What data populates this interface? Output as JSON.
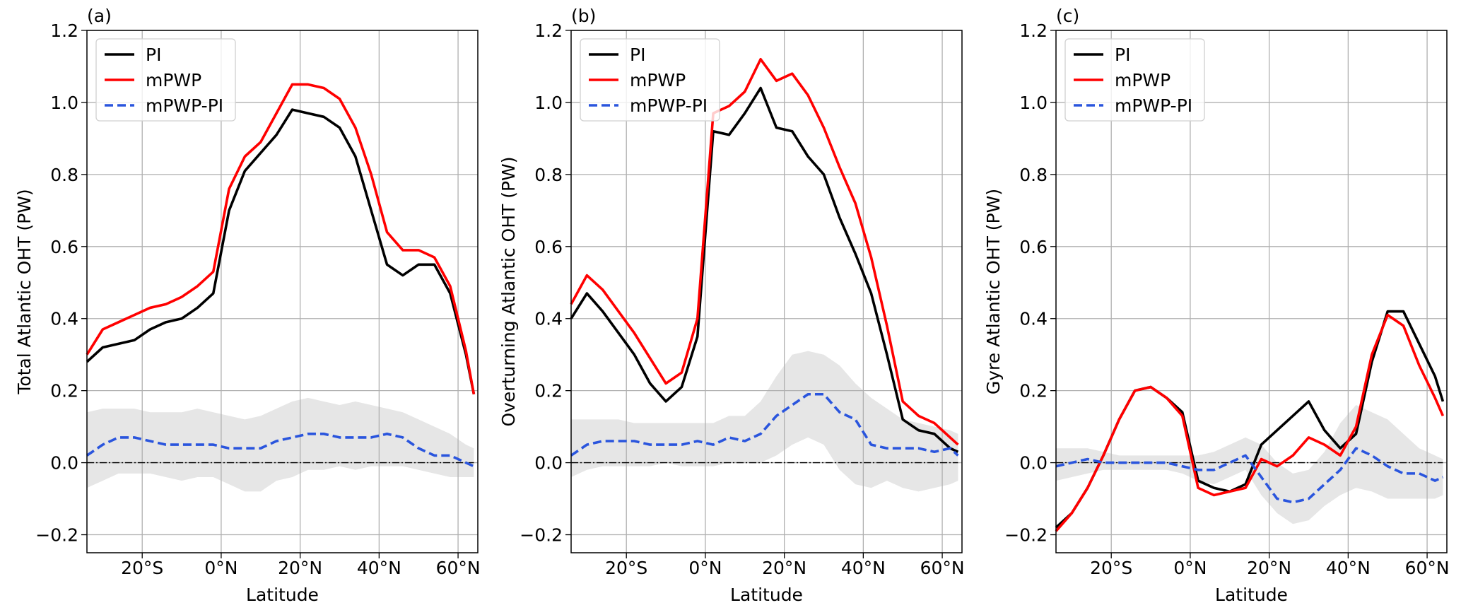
{
  "chart_data": [
    {
      "type": "line",
      "title": "(a)",
      "x_label": "Latitude",
      "y_label": "Total Atlantic OHT (PW)",
      "xlim": [
        -34,
        65
      ],
      "ylim": [
        -0.25,
        1.2
      ],
      "xticks": [
        {
          "value": -20,
          "label": "20°S"
        },
        {
          "value": 0,
          "label": "0°N"
        },
        {
          "value": 20,
          "label": "20°N"
        },
        {
          "value": 40,
          "label": "40°N"
        },
        {
          "value": 60,
          "label": "60°N"
        }
      ],
      "yticks": [
        {
          "value": -0.2,
          "label": "−0.2"
        },
        {
          "value": 0,
          "label": "0.0"
        },
        0.2,
        0.4,
        0.6,
        0.8,
        {
          "value": 1,
          "label": "1.0"
        },
        1.2
      ],
      "grid": true,
      "legend": "upper left",
      "reference_line": 0,
      "x": [
        -34,
        -30,
        -26,
        -22,
        -18,
        -14,
        -10,
        -6,
        -2,
        2,
        6,
        10,
        14,
        18,
        22,
        26,
        30,
        34,
        38,
        42,
        46,
        50,
        54,
        58,
        62,
        64
      ],
      "series": [
        {
          "name": "PI",
          "color": "#000000",
          "linestyle": "solid",
          "values": [
            0.28,
            0.32,
            0.33,
            0.34,
            0.37,
            0.39,
            0.4,
            0.43,
            0.47,
            0.7,
            0.81,
            0.86,
            0.91,
            0.98,
            0.97,
            0.96,
            0.93,
            0.85,
            0.7,
            0.55,
            0.52,
            0.55,
            0.55,
            0.47,
            0.3,
            0.19
          ]
        },
        {
          "name": "mPWP",
          "color": "#ff0000",
          "linestyle": "solid",
          "values": [
            0.3,
            0.37,
            0.39,
            0.41,
            0.43,
            0.44,
            0.46,
            0.49,
            0.53,
            0.76,
            0.85,
            0.89,
            0.97,
            1.05,
            1.05,
            1.04,
            1.01,
            0.93,
            0.8,
            0.64,
            0.59,
            0.59,
            0.57,
            0.49,
            0.31,
            0.19
          ]
        },
        {
          "name": "mPWP-PI",
          "color": "#2a55dd",
          "linestyle": "dashed",
          "values": [
            0.02,
            0.05,
            0.07,
            0.07,
            0.06,
            0.05,
            0.05,
            0.05,
            0.05,
            0.04,
            0.04,
            0.04,
            0.06,
            0.07,
            0.08,
            0.08,
            0.07,
            0.07,
            0.07,
            0.08,
            0.07,
            0.04,
            0.02,
            0.02,
            0.0,
            -0.01
          ]
        }
      ],
      "band": {
        "color": "#e6e6e6",
        "upper": [
          0.14,
          0.15,
          0.15,
          0.15,
          0.14,
          0.14,
          0.14,
          0.15,
          0.14,
          0.13,
          0.12,
          0.13,
          0.15,
          0.17,
          0.18,
          0.17,
          0.16,
          0.17,
          0.16,
          0.15,
          0.14,
          0.12,
          0.1,
          0.08,
          0.05,
          0.04
        ],
        "lower": [
          -0.07,
          -0.05,
          -0.03,
          -0.03,
          -0.03,
          -0.04,
          -0.05,
          -0.04,
          -0.04,
          -0.06,
          -0.08,
          -0.08,
          -0.05,
          -0.04,
          -0.02,
          -0.02,
          -0.01,
          -0.02,
          -0.01,
          -0.01,
          -0.01,
          -0.02,
          -0.03,
          -0.04,
          -0.04,
          -0.04
        ]
      }
    },
    {
      "type": "line",
      "title": "(b)",
      "x_label": "Latitude",
      "y_label": "Overturning Atlantic OHT (PW)",
      "xlim": [
        -34,
        65
      ],
      "ylim": [
        -0.25,
        1.2
      ],
      "xticks": [
        {
          "value": -20,
          "label": "20°S"
        },
        {
          "value": 0,
          "label": "0°N"
        },
        {
          "value": 20,
          "label": "20°N"
        },
        {
          "value": 40,
          "label": "40°N"
        },
        {
          "value": 60,
          "label": "60°N"
        }
      ],
      "yticks": [
        {
          "value": -0.2,
          "label": "−0.2"
        },
        {
          "value": 0,
          "label": "0.0"
        },
        0.2,
        0.4,
        0.6,
        0.8,
        {
          "value": 1,
          "label": "1.0"
        },
        1.2
      ],
      "grid": true,
      "legend": "upper left",
      "reference_line": 0,
      "x": [
        -34,
        -30,
        -26,
        -22,
        -18,
        -14,
        -10,
        -6,
        -2,
        2,
        6,
        10,
        14,
        18,
        22,
        26,
        30,
        34,
        38,
        42,
        46,
        50,
        54,
        58,
        62,
        64
      ],
      "series": [
        {
          "name": "PI",
          "color": "#000000",
          "linestyle": "solid",
          "values": [
            0.4,
            0.47,
            0.42,
            0.36,
            0.3,
            0.22,
            0.17,
            0.21,
            0.35,
            0.92,
            0.91,
            0.97,
            1.04,
            0.93,
            0.92,
            0.85,
            0.8,
            0.68,
            0.58,
            0.47,
            0.3,
            0.12,
            0.09,
            0.08,
            0.04,
            0.03
          ]
        },
        {
          "name": "mPWP",
          "color": "#ff0000",
          "linestyle": "solid",
          "values": [
            0.44,
            0.52,
            0.48,
            0.42,
            0.36,
            0.29,
            0.22,
            0.25,
            0.4,
            0.97,
            0.99,
            1.03,
            1.12,
            1.06,
            1.08,
            1.02,
            0.93,
            0.82,
            0.72,
            0.57,
            0.38,
            0.17,
            0.13,
            0.11,
            0.07,
            0.05
          ]
        },
        {
          "name": "mPWP-PI",
          "color": "#2a55dd",
          "linestyle": "dashed",
          "values": [
            0.02,
            0.05,
            0.06,
            0.06,
            0.06,
            0.05,
            0.05,
            0.05,
            0.06,
            0.05,
            0.07,
            0.06,
            0.08,
            0.13,
            0.16,
            0.19,
            0.19,
            0.14,
            0.12,
            0.05,
            0.04,
            0.04,
            0.04,
            0.03,
            0.04,
            0.02
          ]
        }
      ],
      "band": {
        "color": "#e6e6e6",
        "upper": [
          0.12,
          0.12,
          0.12,
          0.12,
          0.11,
          0.11,
          0.11,
          0.11,
          0.11,
          0.11,
          0.13,
          0.13,
          0.17,
          0.24,
          0.3,
          0.31,
          0.3,
          0.27,
          0.22,
          0.18,
          0.15,
          0.12,
          0.11,
          0.1,
          0.09,
          0.08
        ],
        "lower": [
          -0.04,
          -0.02,
          -0.01,
          -0.01,
          -0.01,
          -0.01,
          0.0,
          -0.01,
          -0.01,
          -0.01,
          0.0,
          0.0,
          0.0,
          0.02,
          0.05,
          0.07,
          0.05,
          -0.02,
          -0.06,
          -0.07,
          -0.05,
          -0.07,
          -0.08,
          -0.07,
          -0.06,
          -0.05
        ]
      }
    },
    {
      "type": "line",
      "title": "(c)",
      "x_label": "Latitude",
      "y_label": "Gyre Atlantic OHT (PW)",
      "xlim": [
        -34,
        65
      ],
      "ylim": [
        -0.25,
        1.2
      ],
      "xticks": [
        {
          "value": -20,
          "label": "20°S"
        },
        {
          "value": 0,
          "label": "0°N"
        },
        {
          "value": 20,
          "label": "20°N"
        },
        {
          "value": 40,
          "label": "40°N"
        },
        {
          "value": 60,
          "label": "60°N"
        }
      ],
      "yticks": [
        {
          "value": -0.2,
          "label": "−0.2"
        },
        {
          "value": 0,
          "label": "0.0"
        },
        0.2,
        0.4,
        0.6,
        0.8,
        {
          "value": 1,
          "label": "1.0"
        },
        1.2
      ],
      "grid": true,
      "legend": "upper left",
      "reference_line": 0,
      "x": [
        -34,
        -30,
        -26,
        -22,
        -18,
        -14,
        -10,
        -6,
        -2,
        2,
        6,
        10,
        14,
        18,
        22,
        26,
        30,
        34,
        38,
        42,
        46,
        50,
        54,
        58,
        62,
        64
      ],
      "series": [
        {
          "name": "PI",
          "color": "#000000",
          "linestyle": "solid",
          "values": [
            -0.18,
            -0.14,
            -0.07,
            0.02,
            0.12,
            0.2,
            0.21,
            0.18,
            0.14,
            -0.05,
            -0.07,
            -0.08,
            -0.06,
            0.05,
            0.09,
            0.13,
            0.17,
            0.09,
            0.04,
            0.08,
            0.28,
            0.42,
            0.42,
            0.33,
            0.24,
            0.17
          ]
        },
        {
          "name": "mPWP",
          "color": "#ff0000",
          "linestyle": "solid",
          "values": [
            -0.19,
            -0.14,
            -0.07,
            0.02,
            0.12,
            0.2,
            0.21,
            0.18,
            0.13,
            -0.07,
            -0.09,
            -0.08,
            -0.07,
            0.01,
            -0.01,
            0.02,
            0.07,
            0.05,
            0.02,
            0.1,
            0.3,
            0.41,
            0.38,
            0.27,
            0.18,
            0.13
          ]
        },
        {
          "name": "mPWP-PI",
          "color": "#2a55dd",
          "linestyle": "dashed",
          "values": [
            -0.01,
            0.0,
            0.01,
            0.0,
            0.0,
            0.0,
            0.0,
            0.0,
            -0.01,
            -0.02,
            -0.02,
            0.0,
            0.02,
            -0.04,
            -0.1,
            -0.11,
            -0.1,
            -0.06,
            -0.02,
            0.04,
            0.02,
            -0.01,
            -0.03,
            -0.03,
            -0.05,
            -0.04
          ]
        }
      ],
      "band": {
        "color": "#e6e6e6",
        "upper": [
          0.04,
          0.04,
          0.04,
          0.03,
          0.02,
          0.02,
          0.02,
          0.02,
          0.02,
          0.02,
          0.03,
          0.05,
          0.07,
          0.05,
          0.0,
          -0.03,
          -0.02,
          0.03,
          0.11,
          0.16,
          0.14,
          0.12,
          0.08,
          0.04,
          0.02,
          0.01
        ],
        "lower": [
          -0.05,
          -0.04,
          -0.03,
          -0.02,
          -0.02,
          -0.02,
          -0.02,
          -0.02,
          -0.03,
          -0.05,
          -0.06,
          -0.04,
          -0.02,
          -0.09,
          -0.14,
          -0.17,
          -0.16,
          -0.12,
          -0.09,
          -0.07,
          -0.08,
          -0.1,
          -0.1,
          -0.1,
          -0.1,
          -0.09
        ]
      }
    }
  ]
}
